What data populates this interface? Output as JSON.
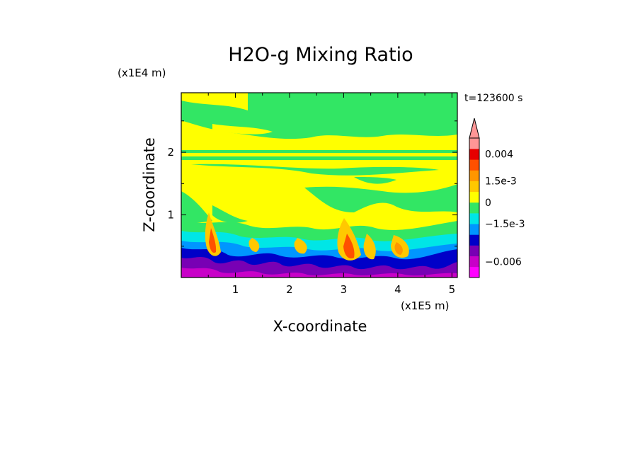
{
  "chart_data": {
    "type": "heatmap",
    "title": "H2O-g Mixing Ratio",
    "xlabel": "X-coordinate",
    "ylabel": "Z-coordinate",
    "x_unit": "(x1E5 m)",
    "y_unit": "(x1E4 m)",
    "time_label": "t=123600 s",
    "xlim": [
      0,
      5.1
    ],
    "ylim": [
      0,
      2.95
    ],
    "x_ticks": [
      1,
      2,
      3,
      4,
      5
    ],
    "y_ticks": [
      1,
      2
    ],
    "colorbar": {
      "levels": [
        {
          "color": "#ff00ff"
        },
        {
          "color": "#c800c8"
        },
        {
          "color": "#7800b4"
        },
        {
          "color": "#0000c8"
        },
        {
          "color": "#0096ff"
        },
        {
          "color": "#00e6e6"
        },
        {
          "color": "#32e664"
        },
        {
          "color": "#ffff00"
        },
        {
          "color": "#ffc800"
        },
        {
          "color": "#ff9600"
        },
        {
          "color": "#ff5000"
        },
        {
          "color": "#e60000"
        },
        {
          "color": "#ff9696"
        }
      ],
      "labels": [
        {
          "text": "0.004",
          "level": 11.5
        },
        {
          "text": "1.5e-3",
          "level": 9.0
        },
        {
          "text": "0",
          "level": 7.0
        },
        {
          "text": "−1.5e-3",
          "level": 5.0
        },
        {
          "text": "−0.006",
          "level": 1.5
        }
      ]
    }
  }
}
